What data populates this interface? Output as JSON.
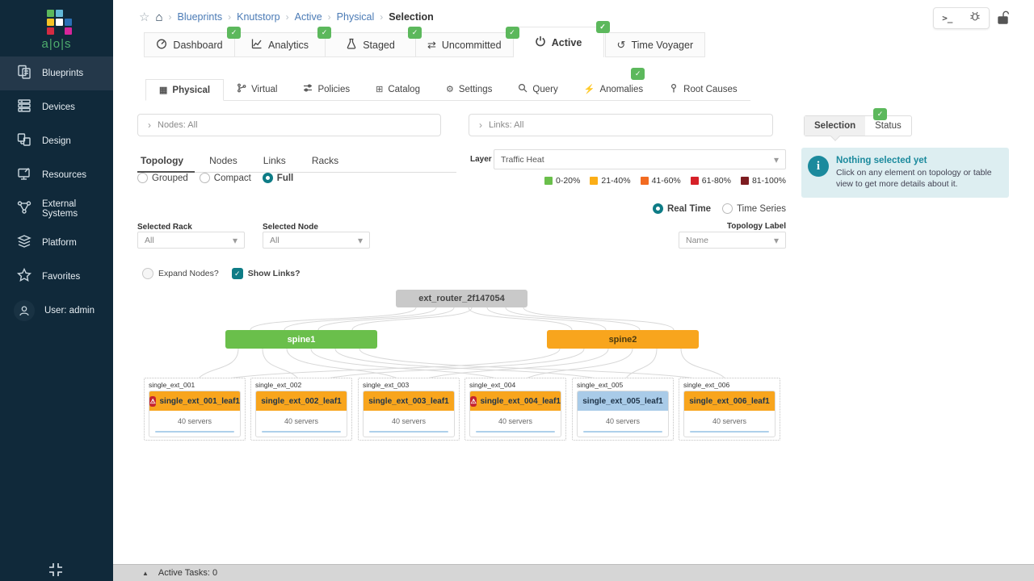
{
  "icons": {
    "check": "✓",
    "star": "☆",
    "home": "⌂",
    "caret_right": "›",
    "caret_down": "▾",
    "triangle_up": "▲",
    "swap": "⇄",
    "history": "↺",
    "gear": "⚙",
    "bolt": "⚡",
    "grid": "⊞",
    "building": "▦",
    "terminal": ">_",
    "warning": "⚠",
    "info": "i"
  },
  "sidebar": {
    "logo_text": "a|o|s",
    "logo_colors": [
      "#5cb85c",
      "#62b8d8",
      "#f7c325",
      "#ffffff",
      "#2a6fb5",
      "#d42b42",
      "#d6259b"
    ],
    "items": [
      {
        "label": "Blueprints",
        "active": true
      },
      {
        "label": "Devices",
        "active": false
      },
      {
        "label": "Design",
        "active": false
      },
      {
        "label": "Resources",
        "active": false
      },
      {
        "label": "External Systems",
        "active": false
      },
      {
        "label": "Platform",
        "active": false
      },
      {
        "label": "Favorites",
        "active": false
      },
      {
        "label": "User: admin",
        "active": false
      }
    ]
  },
  "breadcrumb": {
    "links": [
      "Blueprints",
      "Knutstorp",
      "Active",
      "Physical"
    ],
    "current": "Selection"
  },
  "header_tabs": [
    {
      "label": "Dashboard",
      "badge": true,
      "active": false
    },
    {
      "label": "Analytics",
      "badge": true,
      "active": false
    },
    {
      "label": "Staged",
      "badge": true,
      "active": false
    },
    {
      "label": "Uncommitted",
      "badge": true,
      "active": false
    },
    {
      "label": "Active",
      "badge": true,
      "active": true
    },
    {
      "label": "Time Voyager",
      "badge": false,
      "active": false
    }
  ],
  "sub_tabs": [
    {
      "label": "Physical",
      "active": true,
      "badge": false
    },
    {
      "label": "Virtual",
      "active": false,
      "badge": false
    },
    {
      "label": "Policies",
      "active": false,
      "badge": false
    },
    {
      "label": "Catalog",
      "active": false,
      "badge": false
    },
    {
      "label": "Settings",
      "active": false,
      "badge": false
    },
    {
      "label": "Query",
      "active": false,
      "badge": false
    },
    {
      "label": "Anomalies",
      "active": false,
      "badge": true
    },
    {
      "label": "Root Causes",
      "active": false,
      "badge": false
    }
  ],
  "filters": {
    "nodes": "Nodes: All",
    "links": "Links: All"
  },
  "controls": {
    "view_tabs": [
      {
        "label": "Topology",
        "active": true
      },
      {
        "label": "Nodes",
        "active": false
      },
      {
        "label": "Links",
        "active": false
      },
      {
        "label": "Racks",
        "active": false
      }
    ],
    "view_modes": [
      {
        "label": "Grouped",
        "selected": false
      },
      {
        "label": "Compact",
        "selected": false
      },
      {
        "label": "Full",
        "selected": true
      }
    ],
    "layer": {
      "label": "Layer",
      "value": "Traffic Heat"
    },
    "legend": [
      {
        "label": "0-20%",
        "color": "#6abf4b"
      },
      {
        "label": "21-40%",
        "color": "#fbae17"
      },
      {
        "label": "41-60%",
        "color": "#f26b21"
      },
      {
        "label": "61-80%",
        "color": "#d62128"
      },
      {
        "label": "81-100%",
        "color": "#7d1d21"
      }
    ],
    "time_modes": [
      {
        "label": "Real Time",
        "selected": true
      },
      {
        "label": "Time Series",
        "selected": false
      }
    ],
    "topology_label": {
      "label": "Topology Label",
      "value": "Name"
    },
    "selected_rack": {
      "label": "Selected Rack",
      "value": "All"
    },
    "selected_node": {
      "label": "Selected Node",
      "value": "All"
    },
    "toggles": [
      {
        "label": "Expand Nodes?",
        "checked": false
      },
      {
        "label": "Show Links?",
        "checked": true
      }
    ]
  },
  "topology": {
    "router": {
      "label": "ext_router_2f147054",
      "color": "#c9c9c9"
    },
    "spines": [
      {
        "label": "spine1",
        "color": "#6abf4b"
      },
      {
        "label": "spine2",
        "color": "#f8a51d"
      }
    ],
    "racks": [
      {
        "name": "single_ext_001",
        "leaf": "single_ext_001_leaf1",
        "servers": "40 servers",
        "warning": true,
        "color": "#f8a51d"
      },
      {
        "name": "single_ext_002",
        "leaf": "single_ext_002_leaf1",
        "servers": "40 servers",
        "warning": false,
        "color": "#f8a51d"
      },
      {
        "name": "single_ext_003",
        "leaf": "single_ext_003_leaf1",
        "servers": "40 servers",
        "warning": false,
        "color": "#f8a51d"
      },
      {
        "name": "single_ext_004",
        "leaf": "single_ext_004_leaf1",
        "servers": "40 servers",
        "warning": true,
        "color": "#f8a51d"
      },
      {
        "name": "single_ext_005",
        "leaf": "single_ext_005_leaf1",
        "servers": "40 servers",
        "warning": false,
        "color": "#a9cbe8"
      },
      {
        "name": "single_ext_006",
        "leaf": "single_ext_006_leaf1",
        "servers": "40 servers",
        "warning": false,
        "color": "#f8a51d"
      }
    ]
  },
  "right_panel": {
    "tabs": [
      {
        "label": "Selection",
        "active": true
      },
      {
        "label": "Status",
        "active": false
      }
    ],
    "info": {
      "title": "Nothing selected yet",
      "body": "Click on any element on topology or table view to get more details about it."
    }
  },
  "footer": {
    "active_tasks": "Active Tasks: 0"
  }
}
